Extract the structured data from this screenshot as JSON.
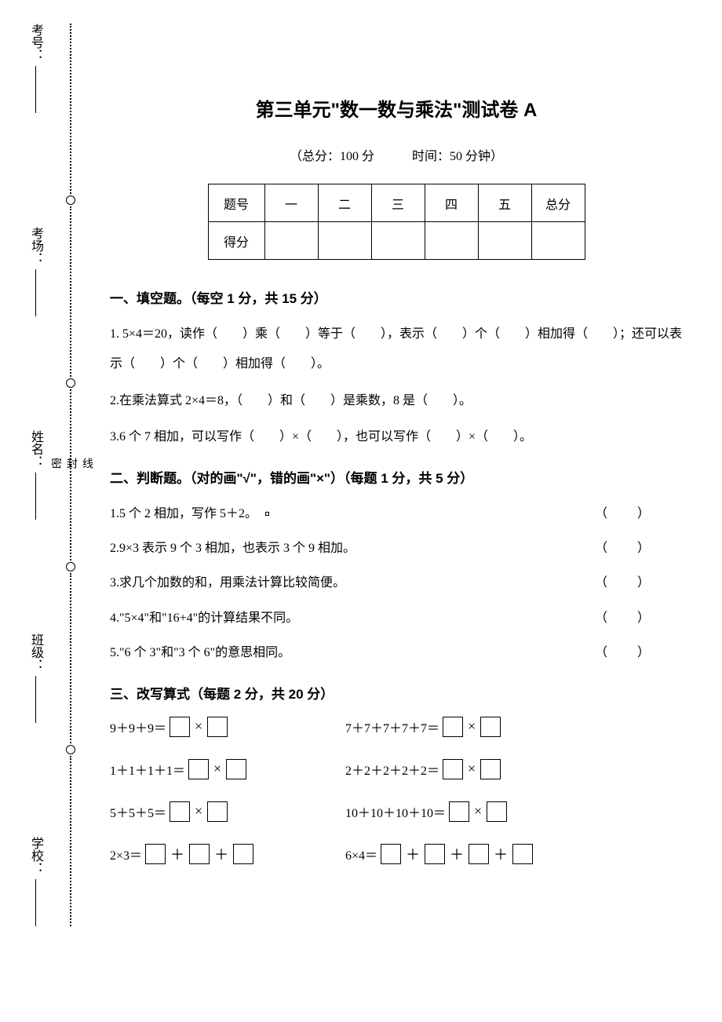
{
  "title": "第三单元\"数一数与乘法\"测试卷 A",
  "subtitle_full": "100",
  "subtitle_time": "50",
  "subtitle_left": "（总分：",
  "subtitle_mid1": " 分",
  "subtitle_gap": "　　　",
  "subtitle_mid2": "时间：",
  "subtitle_right": " 分钟）",
  "score_headers": [
    "题号",
    "一",
    "二",
    "三",
    "四",
    "五",
    "总分"
  ],
  "score_row_label": "得分",
  "sections": {
    "s1": {
      "heading": "一、填空题。（每空 1 分，共 15 分）",
      "q1": "1. 5×4＝20，读作（　　）乘（　　）等于（　　），表示（　　）个（　　）相加得（　　）；还可以表示（　　）个（　　）相加得（　　）。",
      "q2": "2.在乘法算式 2×4＝8，（　　）和（　　）是乘数，8 是（　　）。",
      "q3": "3.6 个 7 相加，可以写作（　　）×（　　），也可以写作（　　）×（　　）。"
    },
    "s2": {
      "heading": "二、判断题。（对的画\"√\"，错的画\"×\"）（每题 1 分，共 5 分）",
      "q1": "1.5 个 2 相加，写作 5＋2。",
      "q2": "2.9×3 表示 9 个 3 相加，也表示 3 个 9 相加。",
      "q3": "3.求几个加数的和，用乘法计算比较简便。",
      "q4": "4.\"5×4\"和\"16+4\"的计算结果不同。",
      "q5": "5.\"6 个 3\"和\"3 个 6\"的意思相同。",
      "paren": "（　　）"
    },
    "s3": {
      "heading": "三、改写算式（每题 2 分，共 20 分）",
      "r1a": "9＋9＋9＝",
      "r1b": "7＋7＋7＋7＋7＝",
      "r2a": "1＋1＋1＋1＝",
      "r2b": "2＋2＋2＋2＋2＝",
      "r3a": "5＋5＋5＝",
      "r3b": "10＋10＋10＋10＝",
      "r4a": "2×3＝",
      "r4b": "6×4＝"
    }
  },
  "side": {
    "l1": "考号：",
    "l2": "考场：",
    "l3": "姓名：",
    "l4": "班级：",
    "l5": "学校："
  },
  "seal": {
    "c1": "线",
    "c2": "封",
    "c3": "密"
  },
  "ops": {
    "times": "×",
    "plus": "＋"
  }
}
